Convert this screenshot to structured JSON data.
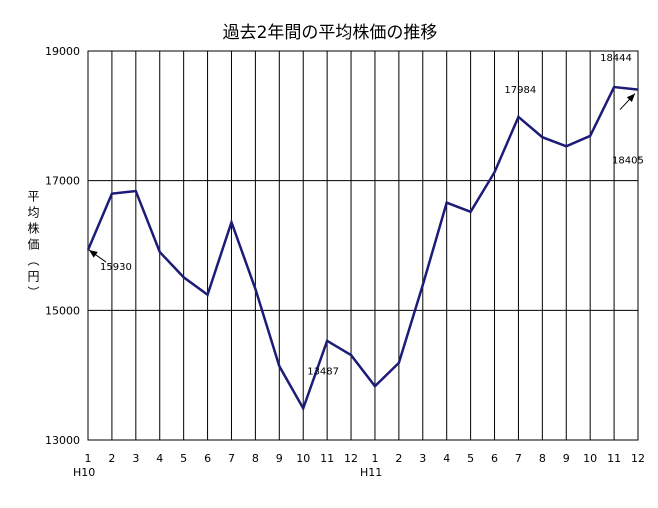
{
  "chart_data": {
    "type": "line",
    "title": "過去2年間の平均株価の推移",
    "y_label": "平均株価（円）",
    "categories": [
      "1",
      "2",
      "3",
      "4",
      "5",
      "6",
      "7",
      "8",
      "9",
      "10",
      "11",
      "12",
      "1",
      "2",
      "3",
      "4",
      "5",
      "6",
      "7",
      "8",
      "9",
      "10",
      "11",
      "12"
    ],
    "groups": [
      {
        "label": "H10",
        "start": 0
      },
      {
        "label": "H11",
        "start": 12
      }
    ],
    "series": [
      {
        "name": "平均株価",
        "color": "#1c1c78",
        "values": [
          15930,
          16800,
          16840,
          15900,
          15510,
          15240,
          16360,
          15330,
          14140,
          13487,
          14530,
          14310,
          13830,
          14190,
          15390,
          16660,
          16520,
          17130,
          17984,
          17670,
          17530,
          17690,
          18444,
          18405
        ]
      }
    ],
    "ylim": [
      13000,
      19000
    ],
    "yticks": [
      13000,
      15000,
      17000,
      19000
    ],
    "grid": true
  }
}
